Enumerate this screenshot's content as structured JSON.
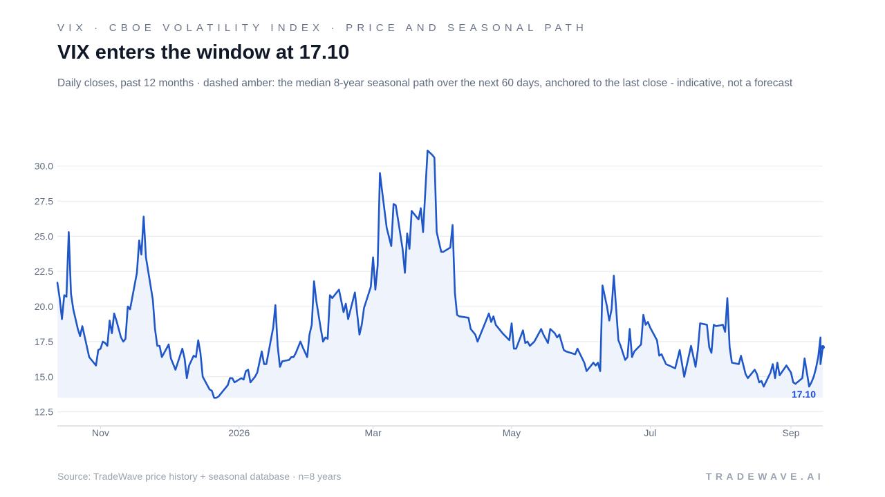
{
  "header": {
    "eyebrow": "VIX · CBOE VOLATILITY INDEX · PRICE AND SEASONAL PATH",
    "title": "VIX enters the window at 17.10",
    "subtitle": "Daily closes, past 12 months · dashed amber: the median 8-year seasonal path over the next 60 days, anchored to the last close - indicative, not a forecast"
  },
  "footer": {
    "source": "Source: TradeWave price history + seasonal database · n=8 years",
    "brand": "TRADEWAVE.AI"
  },
  "colors": {
    "line": "#1f56c8",
    "area": "#eef3fc",
    "grid": "#e5e8ee",
    "axis": "#cfd5de",
    "label": "#1d4ed8"
  },
  "chart_data": {
    "type": "area",
    "ylim": [
      11.5,
      31.5
    ],
    "yticks": [
      12.5,
      15.0,
      17.5,
      20.0,
      22.5,
      25.0,
      27.5,
      30.0
    ],
    "xlim": [
      "2025-10-13",
      "2026-09-15"
    ],
    "xticks": [
      {
        "label": "Nov",
        "date": "2025-11-01"
      },
      {
        "label": "2026",
        "date": "2026-01-01"
      },
      {
        "label": "Mar",
        "date": "2026-03-01"
      },
      {
        "label": "May",
        "date": "2026-05-01"
      },
      {
        "label": "Jul",
        "date": "2026-07-01"
      },
      {
        "label": "Sep",
        "date": "2026-09-01"
      }
    ],
    "grid": true,
    "last_value": 17.1,
    "last_label": "17.10",
    "series": [
      {
        "values": [
          [
            "2025-10-13",
            21.7
          ],
          [
            "2025-10-14",
            20.6
          ],
          [
            "2025-10-15",
            19.1
          ],
          [
            "2025-10-16",
            20.8
          ],
          [
            "2025-10-17",
            20.7
          ],
          [
            "2025-10-18",
            25.3
          ],
          [
            "2025-10-19",
            20.9
          ],
          [
            "2025-10-20",
            19.8
          ],
          [
            "2025-10-22",
            18.4
          ],
          [
            "2025-10-23",
            17.9
          ],
          [
            "2025-10-24",
            18.6
          ],
          [
            "2025-10-27",
            16.4
          ],
          [
            "2025-10-29",
            16.0
          ],
          [
            "2025-10-30",
            15.8
          ],
          [
            "2025-10-31",
            16.9
          ],
          [
            "2025-11-01",
            17.0
          ],
          [
            "2025-11-02",
            17.5
          ],
          [
            "2025-11-03",
            17.4
          ],
          [
            "2025-11-04",
            17.2
          ],
          [
            "2025-11-05",
            19.0
          ],
          [
            "2025-11-06",
            18.1
          ],
          [
            "2025-11-07",
            19.5
          ],
          [
            "2025-11-08",
            19.0
          ],
          [
            "2025-11-09",
            18.4
          ],
          [
            "2025-11-10",
            17.8
          ],
          [
            "2025-11-11",
            17.5
          ],
          [
            "2025-11-12",
            17.7
          ],
          [
            "2025-11-13",
            20.0
          ],
          [
            "2025-11-14",
            19.8
          ],
          [
            "2025-11-17",
            22.4
          ],
          [
            "2025-11-18",
            24.7
          ],
          [
            "2025-11-19",
            23.7
          ],
          [
            "2025-11-20",
            26.4
          ],
          [
            "2025-11-21",
            23.5
          ],
          [
            "2025-11-24",
            20.5
          ],
          [
            "2025-11-25",
            18.4
          ],
          [
            "2025-11-26",
            17.2
          ],
          [
            "2025-11-27",
            17.2
          ],
          [
            "2025-11-28",
            16.4
          ],
          [
            "2025-12-01",
            17.3
          ],
          [
            "2025-12-02",
            16.3
          ],
          [
            "2025-12-04",
            15.5
          ],
          [
            "2025-12-05",
            16.0
          ],
          [
            "2025-12-07",
            17.0
          ],
          [
            "2025-12-08",
            16.3
          ],
          [
            "2025-12-09",
            14.9
          ],
          [
            "2025-12-10",
            15.8
          ],
          [
            "2025-12-12",
            16.5
          ],
          [
            "2025-12-13",
            16.4
          ],
          [
            "2025-12-14",
            17.6
          ],
          [
            "2025-12-15",
            16.7
          ],
          [
            "2025-12-16",
            15.0
          ],
          [
            "2025-12-18",
            14.4
          ],
          [
            "2025-12-19",
            14.1
          ],
          [
            "2025-12-20",
            14.0
          ],
          [
            "2025-12-21",
            13.5
          ],
          [
            "2025-12-22",
            13.5
          ],
          [
            "2025-12-23",
            13.6
          ],
          [
            "2025-12-25",
            14.0
          ],
          [
            "2025-12-27",
            14.4
          ],
          [
            "2025-12-28",
            14.9
          ],
          [
            "2025-12-29",
            14.9
          ],
          [
            "2025-12-30",
            14.6
          ],
          [
            "2026-01-01",
            14.8
          ],
          [
            "2026-01-02",
            14.9
          ],
          [
            "2026-01-03",
            14.8
          ],
          [
            "2026-01-04",
            15.4
          ],
          [
            "2026-01-05",
            15.5
          ],
          [
            "2026-01-06",
            14.6
          ],
          [
            "2026-01-08",
            15.0
          ],
          [
            "2026-01-09",
            15.3
          ],
          [
            "2026-01-11",
            16.8
          ],
          [
            "2026-01-12",
            15.9
          ],
          [
            "2026-01-13",
            15.9
          ],
          [
            "2026-01-16",
            18.5
          ],
          [
            "2026-01-17",
            20.1
          ],
          [
            "2026-01-18",
            17.2
          ],
          [
            "2026-01-19",
            15.7
          ],
          [
            "2026-01-20",
            16.1
          ],
          [
            "2026-01-23",
            16.2
          ],
          [
            "2026-01-24",
            16.4
          ],
          [
            "2026-01-25",
            16.4
          ],
          [
            "2026-01-26",
            16.7
          ],
          [
            "2026-01-28",
            17.5
          ],
          [
            "2026-01-29",
            17.1
          ],
          [
            "2026-01-31",
            16.4
          ],
          [
            "2026-02-01",
            18.0
          ],
          [
            "2026-02-02",
            18.7
          ],
          [
            "2026-02-03",
            21.8
          ],
          [
            "2026-02-04",
            20.4
          ],
          [
            "2026-02-06",
            18.4
          ],
          [
            "2026-02-07",
            17.5
          ],
          [
            "2026-02-08",
            17.8
          ],
          [
            "2026-02-09",
            17.7
          ],
          [
            "2026-02-10",
            20.8
          ],
          [
            "2026-02-11",
            20.6
          ],
          [
            "2026-02-13",
            21.0
          ],
          [
            "2026-02-14",
            21.2
          ],
          [
            "2026-02-16",
            19.6
          ],
          [
            "2026-02-17",
            20.2
          ],
          [
            "2026-02-18",
            19.1
          ],
          [
            "2026-02-21",
            21.0
          ],
          [
            "2026-02-22",
            19.5
          ],
          [
            "2026-02-23",
            18.0
          ],
          [
            "2026-02-24",
            18.7
          ],
          [
            "2026-02-25",
            19.9
          ],
          [
            "2026-02-28",
            21.4
          ],
          [
            "2026-03-01",
            23.5
          ],
          [
            "2026-03-02",
            21.2
          ],
          [
            "2026-03-03",
            22.9
          ],
          [
            "2026-03-04",
            29.5
          ],
          [
            "2026-03-05",
            28.2
          ],
          [
            "2026-03-07",
            25.6
          ],
          [
            "2026-03-09",
            24.3
          ],
          [
            "2026-03-10",
            27.3
          ],
          [
            "2026-03-11",
            27.2
          ],
          [
            "2026-03-12",
            26.2
          ],
          [
            "2026-03-14",
            24.1
          ],
          [
            "2026-03-15",
            22.4
          ],
          [
            "2026-03-16",
            25.2
          ],
          [
            "2026-03-17",
            24.1
          ],
          [
            "2026-03-18",
            26.8
          ],
          [
            "2026-03-20",
            26.4
          ],
          [
            "2026-03-21",
            26.2
          ],
          [
            "2026-03-22",
            27.0
          ],
          [
            "2026-03-23",
            25.3
          ],
          [
            "2026-03-25",
            31.1
          ],
          [
            "2026-03-27",
            30.8
          ],
          [
            "2026-03-28",
            30.6
          ],
          [
            "2026-03-29",
            25.3
          ],
          [
            "2026-03-31",
            23.9
          ],
          [
            "2026-04-01",
            23.9
          ],
          [
            "2026-04-03",
            24.1
          ],
          [
            "2026-04-04",
            24.2
          ],
          [
            "2026-04-05",
            25.8
          ],
          [
            "2026-04-06",
            21.0
          ],
          [
            "2026-04-07",
            19.4
          ],
          [
            "2026-04-08",
            19.3
          ],
          [
            "2026-04-12",
            19.2
          ],
          [
            "2026-04-13",
            18.4
          ],
          [
            "2026-04-15",
            18.0
          ],
          [
            "2026-04-16",
            17.5
          ],
          [
            "2026-04-19",
            18.7
          ],
          [
            "2026-04-21",
            19.5
          ],
          [
            "2026-04-22",
            18.9
          ],
          [
            "2026-04-23",
            19.3
          ],
          [
            "2026-04-24",
            18.7
          ],
          [
            "2026-04-27",
            18.1
          ],
          [
            "2026-04-30",
            17.6
          ],
          [
            "2026-05-01",
            18.8
          ],
          [
            "2026-05-02",
            17.0
          ],
          [
            "2026-05-03",
            17.0
          ],
          [
            "2026-05-06",
            18.3
          ],
          [
            "2026-05-07",
            17.4
          ],
          [
            "2026-05-08",
            17.5
          ],
          [
            "2026-05-09",
            17.2
          ],
          [
            "2026-05-11",
            17.5
          ],
          [
            "2026-05-14",
            18.4
          ],
          [
            "2026-05-15",
            18.0
          ],
          [
            "2026-05-17",
            17.4
          ],
          [
            "2026-05-18",
            18.4
          ],
          [
            "2026-05-20",
            18.1
          ],
          [
            "2026-05-21",
            17.8
          ],
          [
            "2026-05-22",
            18.0
          ],
          [
            "2026-05-24",
            16.9
          ],
          [
            "2026-05-25",
            16.8
          ],
          [
            "2026-05-29",
            16.6
          ],
          [
            "2026-05-30",
            17.0
          ],
          [
            "2026-06-02",
            16.0
          ],
          [
            "2026-06-03",
            15.4
          ],
          [
            "2026-06-04",
            15.6
          ],
          [
            "2026-06-06",
            16.0
          ],
          [
            "2026-06-07",
            15.8
          ],
          [
            "2026-06-08",
            16.0
          ],
          [
            "2026-06-09",
            15.4
          ],
          [
            "2026-06-10",
            21.5
          ],
          [
            "2026-06-12",
            20.0
          ],
          [
            "2026-06-13",
            19.0
          ],
          [
            "2026-06-14",
            19.8
          ],
          [
            "2026-06-15",
            22.2
          ],
          [
            "2026-06-17",
            17.6
          ],
          [
            "2026-06-18",
            17.2
          ],
          [
            "2026-06-20",
            16.2
          ],
          [
            "2026-06-21",
            16.4
          ],
          [
            "2026-06-22",
            18.4
          ],
          [
            "2026-06-23",
            16.4
          ],
          [
            "2026-06-24",
            16.8
          ],
          [
            "2026-06-27",
            17.3
          ],
          [
            "2026-06-28",
            19.4
          ],
          [
            "2026-06-29",
            18.7
          ],
          [
            "2026-06-30",
            18.9
          ],
          [
            "2026-07-01",
            18.5
          ],
          [
            "2026-07-04",
            17.6
          ],
          [
            "2026-07-05",
            16.5
          ],
          [
            "2026-07-06",
            16.6
          ],
          [
            "2026-07-08",
            15.9
          ],
          [
            "2026-07-12",
            15.6
          ],
          [
            "2026-07-14",
            16.9
          ],
          [
            "2026-07-16",
            15.0
          ],
          [
            "2026-07-19",
            17.2
          ],
          [
            "2026-07-21",
            15.7
          ],
          [
            "2026-07-22",
            16.9
          ],
          [
            "2026-07-23",
            18.8
          ],
          [
            "2026-07-26",
            18.7
          ],
          [
            "2026-07-27",
            17.1
          ],
          [
            "2026-07-28",
            16.7
          ],
          [
            "2026-07-29",
            18.7
          ],
          [
            "2026-07-30",
            18.6
          ],
          [
            "2026-08-02",
            18.7
          ],
          [
            "2026-08-03",
            18.2
          ],
          [
            "2026-08-04",
            20.6
          ],
          [
            "2026-08-05",
            17.1
          ],
          [
            "2026-08-06",
            16.0
          ],
          [
            "2026-08-09",
            15.9
          ],
          [
            "2026-08-10",
            16.5
          ],
          [
            "2026-08-12",
            15.2
          ],
          [
            "2026-08-13",
            14.9
          ],
          [
            "2026-08-15",
            15.3
          ],
          [
            "2026-08-16",
            15.5
          ],
          [
            "2026-08-17",
            15.2
          ],
          [
            "2026-08-18",
            14.6
          ],
          [
            "2026-08-19",
            14.7
          ],
          [
            "2026-08-20",
            14.3
          ],
          [
            "2026-08-23",
            15.3
          ],
          [
            "2026-08-24",
            15.9
          ],
          [
            "2026-08-25",
            14.9
          ],
          [
            "2026-08-26",
            16.0
          ],
          [
            "2026-08-27",
            15.1
          ],
          [
            "2026-08-30",
            15.8
          ],
          [
            "2026-09-01",
            15.3
          ],
          [
            "2026-09-02",
            14.6
          ],
          [
            "2026-09-03",
            14.5
          ],
          [
            "2026-09-06",
            14.9
          ],
          [
            "2026-09-07",
            16.3
          ],
          [
            "2026-09-08",
            15.3
          ],
          [
            "2026-09-09",
            14.3
          ],
          [
            "2026-09-10",
            14.6
          ],
          [
            "2026-09-11",
            15.0
          ],
          [
            "2026-09-12",
            15.6
          ],
          [
            "2026-09-13",
            16.4
          ],
          [
            "2026-09-14",
            17.8
          ],
          [
            "2026-09-14",
            15.9
          ],
          [
            "2026-09-15",
            17.1
          ]
        ]
      }
    ]
  }
}
